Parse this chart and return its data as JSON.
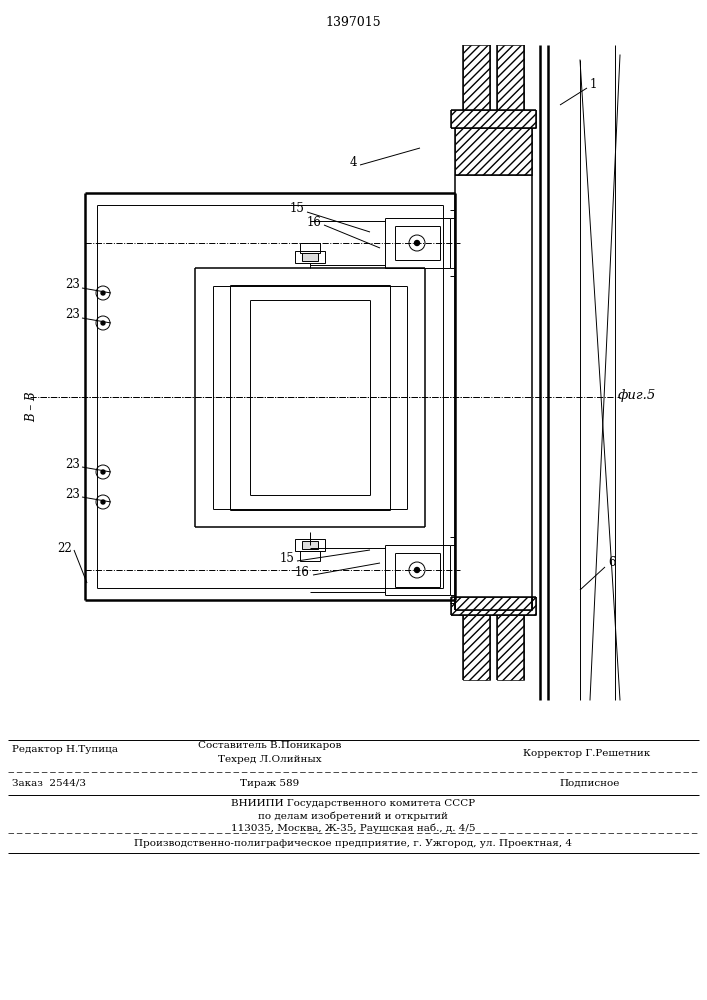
{
  "title": "1397015",
  "fig_label": "фиг.5",
  "bg_color": "#ffffff",
  "line_color": "#000000",
  "footer": {
    "line1_label": "Редактор Н.Тупица",
    "line1_mid": "Составитель В.Поникаров",
    "line1_sub": "Техред Л.Олийных",
    "line1_right": "Корректор Г.Решетник",
    "line2_left": "Заказ  2544/3",
    "line2_mid": "Тираж 589",
    "line2_right": "Подписное",
    "line3": "ВНИИПИ Государственного комитета СССР",
    "line4": "по делам изобретений и открытий",
    "line5": "113035, Москва, Ж-35, Раушская наб., д. 4/5",
    "line6": "Производственно-полиграфическое предприятие, г. Ужгород, ул. Проектная, 4"
  }
}
